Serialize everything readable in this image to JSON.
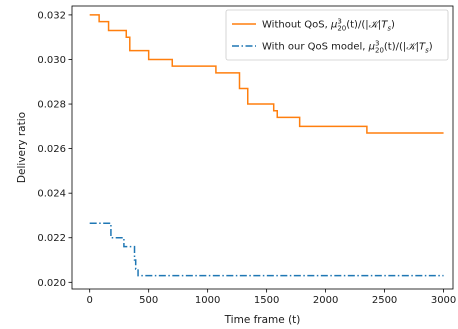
{
  "chart_data": {
    "type": "line",
    "title": "",
    "xlabel": "Time frame (t)",
    "ylabel": "Delivery ratio",
    "xlim": [
      -150,
      3080
    ],
    "ylim": [
      0.0197,
      0.0324
    ],
    "xticks": [
      0,
      500,
      1000,
      1500,
      2000,
      2500,
      3000
    ],
    "yticks": [
      0.02,
      0.022,
      0.024,
      0.026,
      0.028,
      0.03,
      0.032
    ],
    "grid": false,
    "legend_position": "top-right",
    "series": [
      {
        "name_parts": [
          "Without QoS, ",
          "μ",
          "3",
          "20",
          "(t)/(|",
          "𝒦",
          "|",
          "T",
          "s",
          ")"
        ],
        "color": "#ff7f0e",
        "linestyle": "solid",
        "step": "post",
        "x": [
          0,
          80,
          160,
          310,
          340,
          500,
          700,
          1070,
          1270,
          1340,
          1560,
          1590,
          1780,
          2350,
          2360,
          3000
        ],
        "y": [
          0.032,
          0.0317,
          0.0313,
          0.031,
          0.0304,
          0.03,
          0.0297,
          0.0294,
          0.0287,
          0.028,
          0.0277,
          0.0274,
          0.027,
          0.0267,
          0.0267,
          0.0267
        ]
      },
      {
        "name_parts": [
          "With our QoS model, ",
          "μ",
          "3",
          "20",
          "(t)/(|",
          "𝒦",
          "|",
          "T",
          "s",
          ")"
        ],
        "color": "#1f77b4",
        "linestyle": "dashdot",
        "step": "post",
        "x": [
          0,
          150,
          180,
          270,
          290,
          380,
          390,
          410,
          3000
        ],
        "y": [
          0.02265,
          0.02265,
          0.022,
          0.022,
          0.0216,
          0.021,
          0.0206,
          0.0203,
          0.0203
        ]
      }
    ]
  }
}
